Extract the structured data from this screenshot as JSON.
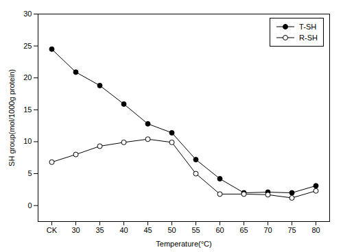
{
  "chart_data": {
    "type": "line",
    "xlabel": "Temperature(°C)",
    "ylabel": "SH group(mol/1000g protein)",
    "categories": [
      "CK",
      "30",
      "35",
      "40",
      "45",
      "50",
      "55",
      "60",
      "65",
      "70",
      "75",
      "80"
    ],
    "series": [
      {
        "name": "T-SH",
        "color": "#000000",
        "marker": "circle_filled",
        "line_style": "solid",
        "values": [
          24.5,
          20.9,
          18.8,
          15.9,
          12.8,
          11.4,
          7.2,
          4.2,
          2.0,
          2.1,
          2.0,
          3.1
        ],
        "errors": [
          0.2,
          0.2,
          0.2,
          0.2,
          0.2,
          0.2,
          0.3,
          0.25,
          0.1,
          0.15,
          0.1,
          0.15
        ]
      },
      {
        "name": "R-SH",
        "color": "#000000",
        "marker": "circle_open",
        "line_style": "solid",
        "values": [
          6.8,
          8.0,
          9.3,
          9.9,
          10.4,
          9.9,
          5.0,
          1.8,
          1.8,
          1.7,
          1.2,
          2.3
        ],
        "errors": [
          0.15,
          0.2,
          0.2,
          0.15,
          0.2,
          0.15,
          0.2,
          0.15,
          0.1,
          0.1,
          0.1,
          0.1
        ]
      }
    ],
    "ylim": [
      -2.5,
      30
    ],
    "yticks": [
      0,
      5,
      10,
      15,
      20,
      25,
      30
    ],
    "grid": false,
    "legend": "upper right"
  }
}
